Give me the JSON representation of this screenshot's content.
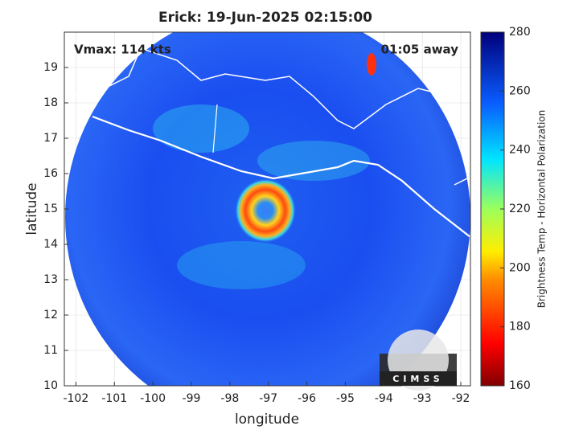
{
  "chart_data": {
    "type": "map",
    "title": "Erick: 19-Jun-2025 02:15:00",
    "annotations": [
      "Vmax: 114 kts",
      "01:05 away"
    ],
    "x_label": "longitude",
    "y_label": "latitude",
    "xlim": [
      -102.3,
      -91.75
    ],
    "ylim": [
      10,
      20
    ],
    "xticks": [
      -102,
      -101,
      -100,
      -99,
      -98,
      -97,
      -96,
      -95,
      -94,
      -93,
      -92
    ],
    "yticks": [
      10,
      11,
      12,
      13,
      14,
      15,
      16,
      17,
      18,
      19
    ],
    "grid": true,
    "colorbar": {
      "label": "Brightness Temp - Horizontal Polarization",
      "lim": [
        160,
        280
      ],
      "ticks": [
        160,
        180,
        200,
        220,
        240,
        260,
        280
      ]
    },
    "logo": "CIMSS"
  }
}
